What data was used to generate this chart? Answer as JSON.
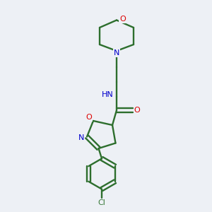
{
  "background_color": "#edf0f5",
  "bond_color": "#2d6e2d",
  "atom_colors": {
    "O": "#dd0000",
    "N": "#0000cc",
    "Cl": "#3a7a3a",
    "C": "#000000",
    "H": "#555555"
  },
  "figsize": [
    3.0,
    3.0
  ],
  "dpi": 100
}
